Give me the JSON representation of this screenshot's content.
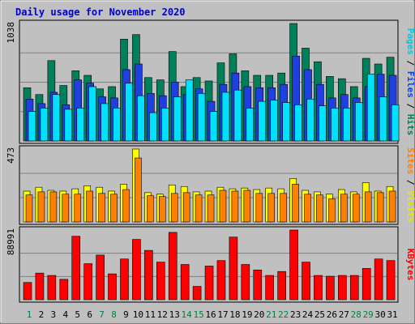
{
  "chart_data": {
    "type": "bar",
    "title": "Daily usage for November 2020",
    "categories": [
      "1",
      "2",
      "3",
      "4",
      "5",
      "6",
      "7",
      "8",
      "9",
      "10",
      "11",
      "12",
      "13",
      "14",
      "15",
      "16",
      "17",
      "18",
      "19",
      "20",
      "21",
      "22",
      "23",
      "24",
      "25",
      "26",
      "27",
      "28",
      "29",
      "30",
      "31"
    ],
    "weekend_days": [
      "1",
      "7",
      "8",
      "14",
      "15",
      "21",
      "22",
      "28",
      "29"
    ],
    "panels": [
      {
        "id": "hits-files-pages",
        "max_label": "1038",
        "ymax": 1038,
        "right_label": [
          {
            "text": "Pages",
            "color": "#00c8e0"
          },
          {
            "text": " / ",
            "color": "#000000"
          },
          {
            "text": "Files",
            "color": "#0040ff"
          },
          {
            "text": " / ",
            "color": "#000000"
          },
          {
            "text": "Hits",
            "color": "#00805a"
          }
        ],
        "series": [
          {
            "name": "Hits",
            "color": "#00805a",
            "values": [
              470,
              410,
              710,
              490,
              620,
              580,
              460,
              480,
              900,
              940,
              560,
              540,
              790,
              480,
              560,
              530,
              690,
              770,
              620,
              580,
              580,
              600,
              1038,
              820,
              700,
              570,
              550,
              480,
              730,
              680,
              740
            ]
          },
          {
            "name": "Files",
            "color": "#1f3fe0",
            "values": [
              370,
              330,
              430,
              320,
              540,
              510,
              390,
              380,
              630,
              680,
              420,
              400,
              520,
              410,
              460,
              350,
              500,
              600,
              480,
              470,
              470,
              500,
              750,
              630,
              500,
              380,
              410,
              380,
              480,
              590,
              580
            ]
          },
          {
            "name": "Pages",
            "color": "#00e0ff",
            "values": [
              260,
              290,
              410,
              280,
              290,
              480,
              330,
              290,
              510,
              400,
              250,
              290,
              390,
              540,
              420,
              260,
              430,
              450,
              290,
              350,
              360,
              340,
              320,
              370,
              310,
              290,
              290,
              340,
              590,
              390,
              320
            ]
          }
        ]
      },
      {
        "id": "visits-sites",
        "max_label": "473",
        "ymax": 473,
        "right_label": [
          {
            "text": "Sites",
            "color": "#ff8000"
          },
          {
            "text": " / ",
            "color": "#000000"
          },
          {
            "text": "Visits",
            "color": "#e8e800"
          }
        ],
        "series": [
          {
            "name": "Visits",
            "color": "#ffff00",
            "values": [
              200,
              225,
              205,
              200,
              215,
              235,
              225,
              200,
              245,
              473,
              190,
              180,
              240,
              230,
              195,
              200,
              225,
              215,
              220,
              210,
              220,
              215,
              282,
              205,
              195,
              180,
              210,
              195,
              255,
              200,
              230
            ]
          },
          {
            "name": "Sites",
            "color": "#ff8000",
            "values": [
              175,
              195,
              195,
              180,
              180,
              200,
              185,
              180,
              210,
              415,
              170,
              165,
              185,
              190,
              175,
              175,
              205,
              200,
              205,
              185,
              185,
              185,
              245,
              180,
              175,
              150,
              180,
              180,
              195,
              190,
              200
            ]
          }
        ]
      },
      {
        "id": "kbytes",
        "max_label": "88991",
        "ymax": 88991,
        "right_label": [
          {
            "text": "KBytes",
            "color": "#ff0000"
          }
        ],
        "series": [
          {
            "name": "KBytes",
            "color": "#ff0000",
            "values": [
              22000,
              34000,
              31000,
              26000,
              81000,
              46000,
              57000,
              33000,
              52000,
              77000,
              63000,
              48000,
              86000,
              45000,
              17000,
              43000,
              50000,
              80000,
              45000,
              38000,
              31000,
              36000,
              88991,
              48000,
              31000,
              30000,
              31000,
              31000,
              40000,
              52000,
              50000
            ]
          }
        ]
      }
    ]
  }
}
